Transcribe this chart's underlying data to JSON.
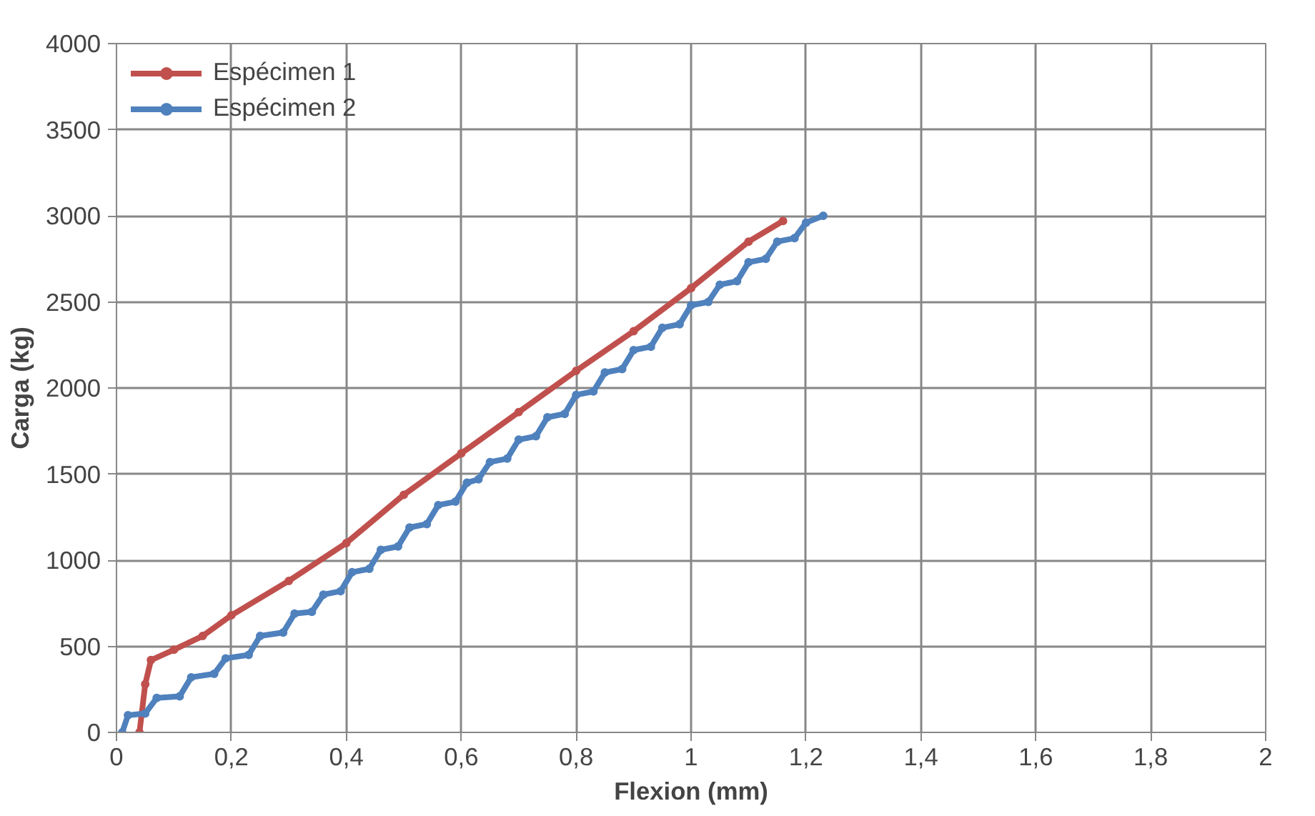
{
  "chart_data": {
    "type": "line",
    "xlabel": "Flexion (mm)",
    "ylabel": "Carga (kg)",
    "xlim": [
      0,
      2
    ],
    "ylim": [
      0,
      4000
    ],
    "xticks": [
      0,
      {
        "value": 0.2,
        "label": "0,2"
      },
      {
        "value": 0.4,
        "label": "0,4"
      },
      {
        "value": 0.6,
        "label": "0,6"
      },
      {
        "value": 0.8,
        "label": "0,8"
      },
      1,
      {
        "value": 1.2,
        "label": "1,2"
      },
      {
        "value": 1.4,
        "label": "1,4"
      },
      {
        "value": 1.6,
        "label": "1,6"
      },
      {
        "value": 1.8,
        "label": "1,8"
      },
      2
    ],
    "yticks": [
      0,
      500,
      1000,
      1500,
      2000,
      2500,
      3000,
      3500,
      4000
    ],
    "grid": true,
    "legend": "top left",
    "marker": "circle",
    "line_style": "solid",
    "series": [
      {
        "name": "Espécimen 1",
        "color": "#c0504d",
        "x": [
          0.04,
          0.05,
          0.06,
          0.1,
          0.15,
          0.2,
          0.3,
          0.4,
          0.5,
          0.6,
          0.7,
          0.8,
          0.9,
          1.0,
          1.1,
          1.16
        ],
        "values": [
          0,
          280,
          420,
          480,
          560,
          680,
          880,
          1100,
          1380,
          1620,
          1860,
          2100,
          2330,
          2580,
          2850,
          2970
        ]
      },
      {
        "name": "Espécimen 2",
        "color": "#4f81bd",
        "x": [
          0.01,
          0.02,
          0.05,
          0.07,
          0.11,
          0.13,
          0.17,
          0.19,
          0.23,
          0.25,
          0.29,
          0.31,
          0.34,
          0.36,
          0.39,
          0.41,
          0.44,
          0.46,
          0.49,
          0.51,
          0.54,
          0.56,
          0.59,
          0.61,
          0.63,
          0.65,
          0.68,
          0.7,
          0.73,
          0.75,
          0.78,
          0.8,
          0.83,
          0.85,
          0.88,
          0.9,
          0.93,
          0.95,
          0.98,
          1.0,
          1.03,
          1.05,
          1.08,
          1.1,
          1.13,
          1.15,
          1.18,
          1.2,
          1.23
        ],
        "values": [
          0,
          100,
          110,
          200,
          210,
          320,
          340,
          430,
          450,
          560,
          580,
          690,
          700,
          800,
          820,
          930,
          950,
          1060,
          1080,
          1190,
          1210,
          1320,
          1340,
          1450,
          1470,
          1570,
          1590,
          1700,
          1720,
          1830,
          1850,
          1960,
          1980,
          2090,
          2110,
          2220,
          2240,
          2350,
          2370,
          2480,
          2500,
          2600,
          2620,
          2730,
          2750,
          2850,
          2870,
          2960,
          3000
        ]
      }
    ]
  }
}
